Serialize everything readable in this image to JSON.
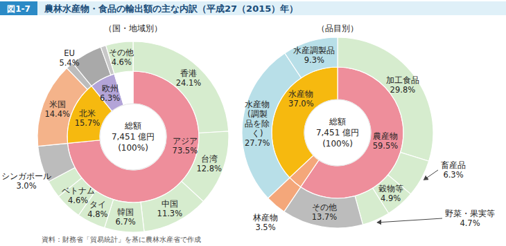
{
  "header": {
    "label": "図1-7",
    "title": "農林水産物・食品の輸出額の主な内訳（平成27（2015）年）"
  },
  "source": "資料：財務省「貿易統計」を基に農林水産省で作成",
  "chart_data": [
    {
      "type": "donut",
      "subtitle": "（国・地域別）",
      "center_labels": [
        "総額",
        "7,451 億円",
        "(100%)"
      ],
      "data_labels": true,
      "rings": [
        {
          "categories": [
            "アジア",
            "北米",
            "欧州",
            null
          ],
          "values": [
            73.5,
            15.7,
            6.3,
            4.6
          ],
          "value_labels": [
            "73.5%",
            "15.7%",
            "6.3%",
            null
          ],
          "colors": [
            "#ee8e9b",
            "#f6b90f",
            "#b3a4d8",
            "#ffffff"
          ]
        },
        {
          "categories": [
            "香港",
            "台湾",
            "中国",
            "韓国",
            "タイ",
            "ベトナム",
            "シンガポール",
            null,
            "米国",
            null,
            "EU",
            null,
            "その他"
          ],
          "values": [
            24.1,
            12.8,
            11.3,
            6.7,
            4.8,
            4.6,
            3.0,
            6.2,
            14.4,
            1.3,
            5.4,
            0.9,
            4.6
          ],
          "value_labels": [
            "24.1%",
            "12.8%",
            "11.3%",
            "6.7%",
            "4.8%",
            "4.6%",
            "3.0%",
            null,
            "14.4%",
            null,
            "5.4%",
            null,
            "4.6%"
          ],
          "colors": [
            "#d6ecce",
            "#d6ecce",
            "#d6ecce",
            "#d6ecce",
            "#d6ecce",
            "#d6ecce",
            "#d6ecce",
            "#bcbcbc",
            "#f4b38a",
            "#bcbcbc",
            "#a9a9a9",
            "#c8c8c8",
            "#d6ecce"
          ]
        }
      ]
    },
    {
      "type": "donut",
      "subtitle": "（品目別）",
      "center_labels": [
        "総額",
        "7,451 億円",
        "(100%)"
      ],
      "data_labels": true,
      "rings": [
        {
          "categories": [
            "農産物",
            null,
            "水産物"
          ],
          "values": [
            59.5,
            3.5,
            37.0
          ],
          "value_labels": [
            "59.5%",
            null,
            "37.0%"
          ],
          "colors": [
            "#ee8e9b",
            "#f4a77a",
            "#f6b90f"
          ]
        },
        {
          "categories": [
            "加工食品",
            "畜産品",
            "穀物等",
            "野菜・果実等",
            "その他",
            "林産物",
            "水産物\n(調製\n品を除\nく)",
            "水産調製品"
          ],
          "values": [
            29.8,
            6.3,
            4.9,
            4.7,
            13.7,
            3.5,
            27.7,
            9.3
          ],
          "value_labels": [
            "29.8%",
            "6.3%",
            "4.9%",
            "4.7%",
            "13.7%",
            "3.5%",
            "27.7%",
            "9.3%"
          ],
          "colors": [
            "#d6ecce",
            "#d6ecce",
            "#d6ecce",
            "#d6ecce",
            "#bcbcbc",
            "#f4a77a",
            "#b8dfe8",
            "#b8dfe8"
          ]
        }
      ]
    }
  ]
}
